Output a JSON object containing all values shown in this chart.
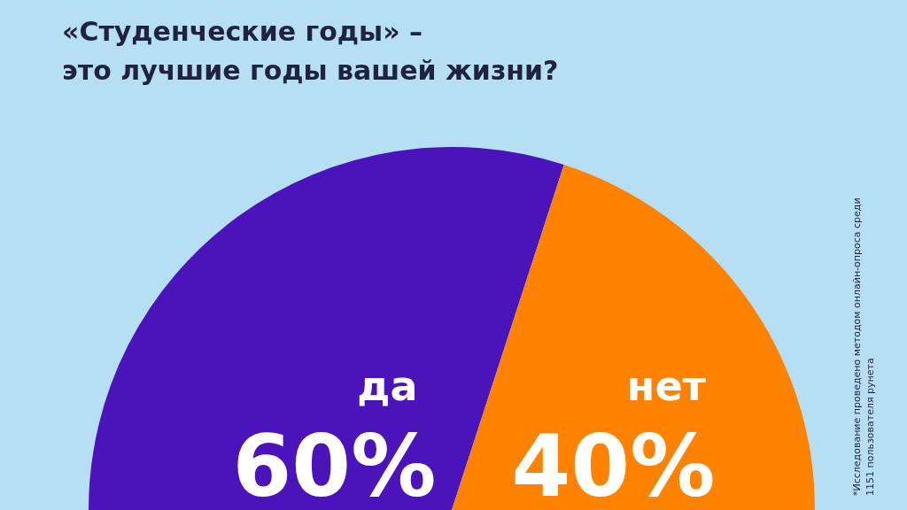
{
  "chart_data": {
    "type": "pie",
    "title": "«Студенческие годы» –\nэто лучшие годы вашей жизни?",
    "categories": [
      "да",
      "нет"
    ],
    "values": [
      60,
      40
    ],
    "colors": [
      "#4b14bb",
      "#ff8200"
    ],
    "value_labels": [
      "60%",
      "40%"
    ],
    "legend": false,
    "annotations": [
      "*Исследование проведено методом онлайн-опроса среди 1151 пользователя рунета"
    ]
  }
}
